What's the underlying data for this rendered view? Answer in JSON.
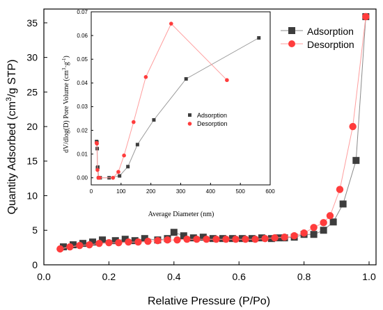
{
  "chart_data": [
    {
      "type": "scatter",
      "xlabel": "Relative Pressure (P/Po)",
      "ylabel": "Quantity Adsorbed (cm",
      "ylabel_sup": "3",
      "ylabel_end": "/g STP)",
      "xlim": [
        0.0,
        1.0
      ],
      "ylim": [
        0,
        37
      ],
      "x_ticks": [
        0.0,
        0.2,
        0.4,
        0.6,
        0.8,
        1.0
      ],
      "x_tick_labels": [
        "0.0",
        "0.2",
        "0.4",
        "0.6",
        "0.8",
        "1.0"
      ],
      "y_ticks": [
        0,
        5,
        10,
        15,
        20,
        25,
        30,
        35
      ],
      "y_tick_labels": [
        "0",
        "5",
        "10",
        "15",
        "20",
        "25",
        "30",
        "35"
      ],
      "legend_position": "top-right",
      "series": [
        {
          "name": "Adsorption",
          "marker": "square",
          "color": "#3d3d3d",
          "line_color": "#8a8a8a",
          "x": [
            0.06,
            0.09,
            0.12,
            0.15,
            0.18,
            0.22,
            0.25,
            0.28,
            0.31,
            0.35,
            0.38,
            0.4,
            0.43,
            0.46,
            0.49,
            0.52,
            0.55,
            0.58,
            0.61,
            0.64,
            0.67,
            0.7,
            0.72,
            0.74,
            0.77,
            0.8,
            0.83,
            0.86,
            0.89,
            0.92,
            0.96,
            0.99
          ],
          "y": [
            2.6,
            2.9,
            3.1,
            3.3,
            3.6,
            3.5,
            3.7,
            3.5,
            3.8,
            3.6,
            3.8,
            4.7,
            4.2,
            3.9,
            4.0,
            3.8,
            3.8,
            3.8,
            3.8,
            3.8,
            3.9,
            3.8,
            3.9,
            3.9,
            4.0,
            4.4,
            4.4,
            5.0,
            6.2,
            8.8,
            15.1,
            35.9
          ]
        },
        {
          "name": "Desorption",
          "marker": "circle",
          "color": "#ff3c3c",
          "line_color": "#ff9d9d",
          "x": [
            0.05,
            0.08,
            0.11,
            0.14,
            0.17,
            0.2,
            0.23,
            0.26,
            0.29,
            0.32,
            0.35,
            0.38,
            0.41,
            0.44,
            0.47,
            0.5,
            0.53,
            0.56,
            0.59,
            0.62,
            0.65,
            0.68,
            0.71,
            0.74,
            0.77,
            0.8,
            0.83,
            0.86,
            0.88,
            0.91,
            0.95,
            0.99
          ],
          "y": [
            2.3,
            2.6,
            2.8,
            2.9,
            3.1,
            3.2,
            3.2,
            3.3,
            3.3,
            3.4,
            3.5,
            3.6,
            3.6,
            3.7,
            3.7,
            3.7,
            3.7,
            3.7,
            3.7,
            3.7,
            3.7,
            3.8,
            3.9,
            4.0,
            4.2,
            4.6,
            5.4,
            6.1,
            7.1,
            10.9,
            20.0,
            35.9
          ]
        }
      ]
    },
    {
      "type": "line",
      "xlabel": "Average Diameter (nm)",
      "ylabel": "dV/dlog(D) Pore Volume (cm",
      "ylabel_sup1": "3",
      "ylabel_mid": "g",
      "ylabel_sup2": "-1",
      "ylabel_end": ")",
      "xlim": [
        0,
        600
      ],
      "ylim": [
        -0.003,
        0.07
      ],
      "x_ticks": [
        0,
        100,
        200,
        300,
        400,
        500,
        600
      ],
      "x_tick_labels": [
        "0",
        "100",
        "200",
        "300",
        "400",
        "500",
        "600"
      ],
      "y_ticks": [
        0.0,
        0.01,
        0.02,
        0.03,
        0.04,
        0.05,
        0.06,
        0.07
      ],
      "y_tick_labels": [
        "0.00",
        "0.01",
        "0.02",
        "0.03",
        "0.04",
        "0.05",
        "0.06",
        "0.07"
      ],
      "legend_position": "middle-right",
      "series": [
        {
          "name": "Adsorption",
          "marker": "square",
          "color": "#3d3d3d",
          "line_color": "#9a9a9a",
          "x": [
            18,
            19,
            20,
            21,
            22,
            25,
            30,
            60,
            95,
            123,
            155,
            210,
            318,
            562
          ],
          "y": [
            0.0153,
            0.015,
            0.0123,
            0.0042,
            0.0045,
            0.0,
            0.0,
            0.0,
            0.0008,
            0.0047,
            0.014,
            0.0244,
            0.0417,
            0.059
          ]
        },
        {
          "name": "Desorption",
          "marker": "circle",
          "color": "#ff3c3c",
          "line_color": "#ff9d9d",
          "x": [
            18,
            19,
            21,
            24,
            28,
            73,
            91,
            110,
            142,
            183,
            268,
            455
          ],
          "y": [
            0.0147,
            0.0144,
            0.0033,
            0.0,
            0.0,
            0.0,
            0.0025,
            0.0094,
            0.0235,
            0.0425,
            0.065,
            0.0412
          ]
        }
      ]
    }
  ]
}
